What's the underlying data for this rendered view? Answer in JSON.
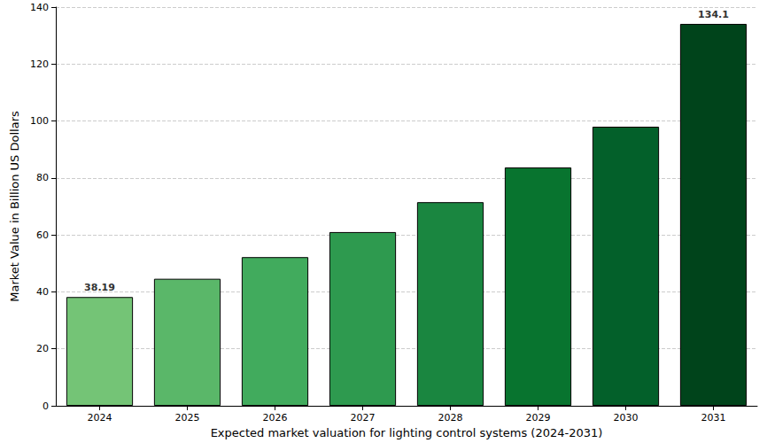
{
  "chart_data": {
    "type": "bar",
    "xlabel": "Expected market valuation for lighting control systems (2024-2031)",
    "ylabel": "Market Value in Billion US Dollars",
    "categories": [
      "2024",
      "2025",
      "2026",
      "2027",
      "2028",
      "2029",
      "2030",
      "2031"
    ],
    "values": [
      38.19,
      44.6,
      52.2,
      61.0,
      71.5,
      83.7,
      98.0,
      134.1
    ],
    "value_labels": [
      "38.19",
      null,
      null,
      null,
      null,
      null,
      null,
      "134.1"
    ],
    "colors": [
      "#74c476",
      "#5ab769",
      "#41ab5d",
      "#2e9a4f",
      "#1a8640",
      "#08742f",
      "#03602a",
      "#00441b"
    ],
    "ylim": [
      0,
      140
    ],
    "yticks": [
      0,
      20,
      40,
      60,
      80,
      100,
      120,
      140
    ],
    "grid": true,
    "data_labels": true
  }
}
